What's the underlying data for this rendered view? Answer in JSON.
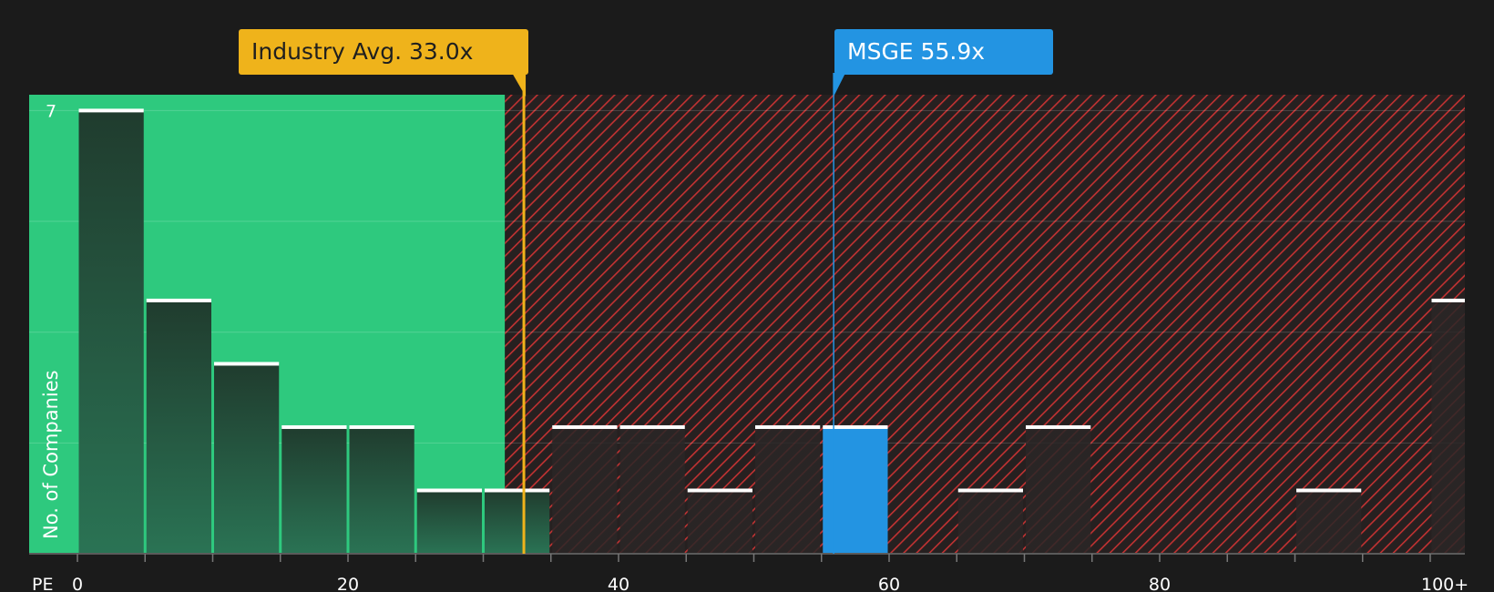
{
  "colors": {
    "background": "#1b1b1b",
    "fair_zone": "#2ec97e",
    "expensive_zone": "#c23232",
    "industry_avg": "#efb31b",
    "company": "#2394e2",
    "bar_top_line": "#ffffff",
    "bar_dark": "#234132"
  },
  "annotations": {
    "industry_avg_label": "Industry Avg. 33.0x",
    "company_label": "MSGE 55.9x"
  },
  "chart_data": {
    "type": "bar",
    "title": "",
    "xlabel": "PE",
    "ylabel": "No. of Companies",
    "x_ticks": [
      {
        "value": 0,
        "label": "0"
      },
      {
        "value": 20,
        "label": "20"
      },
      {
        "value": 40,
        "label": "40"
      },
      {
        "value": 60,
        "label": "60"
      },
      {
        "value": 80,
        "label": "80"
      },
      {
        "value": 100,
        "label": "100+"
      }
    ],
    "y_ticks": [
      {
        "value": 7,
        "label": "7"
      }
    ],
    "xlim": [
      0,
      102.5
    ],
    "ylim": [
      0,
      7.25
    ],
    "bin_width": 5,
    "grid": true,
    "fair_value_threshold": 31.6,
    "industry_avg": 33.0,
    "company_value": 55.9,
    "company_name": "MSGE",
    "bins": [
      {
        "start": 0,
        "count": 7
      },
      {
        "start": 5,
        "count": 4
      },
      {
        "start": 10,
        "count": 3
      },
      {
        "start": 15,
        "count": 2
      },
      {
        "start": 20,
        "count": 2
      },
      {
        "start": 25,
        "count": 1
      },
      {
        "start": 30,
        "count": 1
      },
      {
        "start": 35,
        "count": 2
      },
      {
        "start": 40,
        "count": 2
      },
      {
        "start": 45,
        "count": 1
      },
      {
        "start": 50,
        "count": 2
      },
      {
        "start": 55,
        "count": 2,
        "highlight": true
      },
      {
        "start": 60,
        "count": 0
      },
      {
        "start": 65,
        "count": 1
      },
      {
        "start": 70,
        "count": 2
      },
      {
        "start": 75,
        "count": 0
      },
      {
        "start": 80,
        "count": 0
      },
      {
        "start": 85,
        "count": 0
      },
      {
        "start": 90,
        "count": 1
      },
      {
        "start": 95,
        "count": 0
      },
      {
        "start": 100,
        "count": 4
      }
    ]
  }
}
